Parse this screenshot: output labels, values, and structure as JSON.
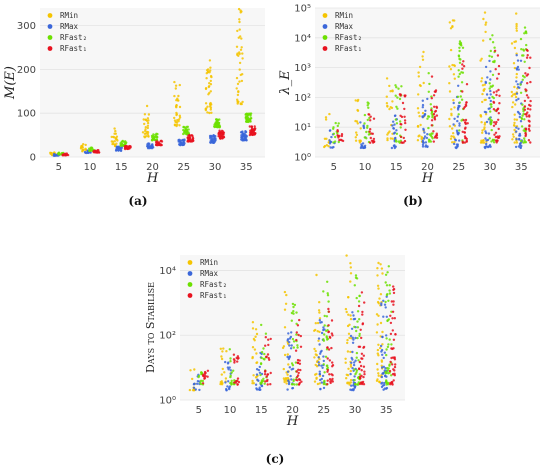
{
  "colors": {
    "RMin": "#f5c400",
    "RMax": "#3a66d9",
    "RFast2": "#6ce000",
    "RFast1": "#e8121f"
  },
  "chart_data": [
    {
      "type": "scatter",
      "panel_label": "(a)",
      "xlabel": "H",
      "ylabel": "M(E)",
      "yscale": "linear",
      "ylim": [
        0,
        340
      ],
      "xticks": [
        5,
        10,
        15,
        20,
        25,
        30,
        35
      ],
      "yticks": [
        0,
        100,
        200,
        300
      ],
      "legend": {
        "placement": "top-left",
        "entries": [
          "RMin",
          "RMax",
          "RFast₂",
          "RFast₁"
        ]
      },
      "series": [
        {
          "name": "RMin",
          "x": [
            5,
            10,
            15,
            20,
            25,
            30,
            35
          ],
          "low": [
            4,
            12,
            25,
            45,
            70,
            100,
            120
          ],
          "high": [
            12,
            30,
            65,
            120,
            175,
            240,
            340
          ]
        },
        {
          "name": "RMax",
          "x": [
            5,
            10,
            15,
            20,
            25,
            30,
            35
          ],
          "low": [
            3,
            9,
            14,
            20,
            27,
            32,
            38
          ],
          "high": [
            7,
            15,
            24,
            32,
            40,
            50,
            60
          ]
        },
        {
          "name": "RFast₂",
          "x": [
            5,
            10,
            15,
            20,
            25,
            30,
            35
          ],
          "low": [
            6,
            14,
            25,
            38,
            52,
            68,
            80
          ],
          "high": [
            11,
            22,
            37,
            53,
            70,
            88,
            100
          ]
        },
        {
          "name": "RFast₁",
          "x": [
            5,
            10,
            15,
            20,
            25,
            30,
            35
          ],
          "low": [
            4,
            10,
            18,
            27,
            35,
            42,
            50
          ],
          "high": [
            8,
            16,
            26,
            38,
            50,
            60,
            70
          ]
        }
      ]
    },
    {
      "type": "scatter",
      "panel_label": "(b)",
      "xlabel": "H",
      "ylabel": "λ_E",
      "yscale": "log",
      "ylim": [
        1,
        100000
      ],
      "xticks": [
        5,
        10,
        15,
        20,
        25,
        30,
        35
      ],
      "yticks": [
        "10⁰",
        "10¹",
        "10²",
        "10³",
        "10⁴",
        "10⁵"
      ],
      "legend": {
        "placement": "top-left",
        "entries": [
          "RMin",
          "RMax",
          "RFast₂",
          "RFast₁"
        ]
      },
      "series": [
        {
          "name": "RMin",
          "x": [
            5,
            10,
            15,
            20,
            25,
            30,
            35
          ],
          "low": [
            2,
            3,
            3,
            3,
            3,
            3,
            3
          ],
          "high": [
            30,
            150,
            700,
            5000,
            60000,
            100000,
            100000
          ]
        },
        {
          "name": "RMax",
          "x": [
            5,
            10,
            15,
            20,
            25,
            30,
            35
          ],
          "low": [
            2,
            2,
            2,
            2,
            2,
            2,
            2
          ],
          "high": [
            8,
            15,
            40,
            100,
            300,
            2000,
            3000
          ]
        },
        {
          "name": "RFast₂",
          "x": [
            5,
            10,
            15,
            20,
            25,
            30,
            35
          ],
          "low": [
            3,
            3,
            3,
            3,
            3,
            3,
            3
          ],
          "high": [
            15,
            80,
            300,
            1500,
            8000,
            20000,
            30000
          ]
        },
        {
          "name": "RFast₁",
          "x": [
            5,
            10,
            15,
            20,
            25,
            30,
            35
          ],
          "low": [
            3,
            3,
            3,
            3,
            3,
            3,
            3
          ],
          "high": [
            8,
            30,
            150,
            500,
            2000,
            5000,
            5000
          ]
        }
      ]
    },
    {
      "type": "scatter",
      "panel_label": "(c)",
      "xlabel": "H",
      "ylabel": "Days to Stabilise",
      "yscale": "log",
      "ylim": [
        1,
        30000
      ],
      "xticks": [
        5,
        10,
        15,
        20,
        25,
        30,
        35
      ],
      "yticks": [
        "10⁰",
        "10²",
        "10⁴"
      ],
      "legend": {
        "placement": "top-left",
        "entries": [
          "RMin",
          "RMax",
          "RFast₂",
          "RFast₁"
        ]
      },
      "series": [
        {
          "name": "RMin",
          "x": [
            5,
            10,
            15,
            20,
            25,
            30,
            35
          ],
          "low": [
            2,
            3,
            3,
            3,
            3,
            3,
            3
          ],
          "high": [
            10,
            60,
            300,
            3000,
            15000,
            30000,
            30000
          ]
        },
        {
          "name": "RMax",
          "x": [
            5,
            10,
            15,
            20,
            25,
            30,
            35
          ],
          "low": [
            2,
            2,
            2,
            2,
            2,
            2,
            2
          ],
          "high": [
            6,
            15,
            50,
            150,
            300,
            800,
            2000
          ]
        },
        {
          "name": "RFast₂",
          "x": [
            5,
            10,
            15,
            20,
            25,
            30,
            35
          ],
          "low": [
            3,
            3,
            3,
            3,
            3,
            3,
            3
          ],
          "high": [
            10,
            60,
            250,
            1000,
            5000,
            10000,
            15000
          ]
        },
        {
          "name": "RFast₁",
          "x": [
            5,
            10,
            15,
            20,
            25,
            30,
            35
          ],
          "low": [
            3,
            3,
            3,
            3,
            3,
            3,
            3
          ],
          "high": [
            8,
            30,
            100,
            300,
            1000,
            3000,
            4000
          ]
        }
      ]
    }
  ]
}
